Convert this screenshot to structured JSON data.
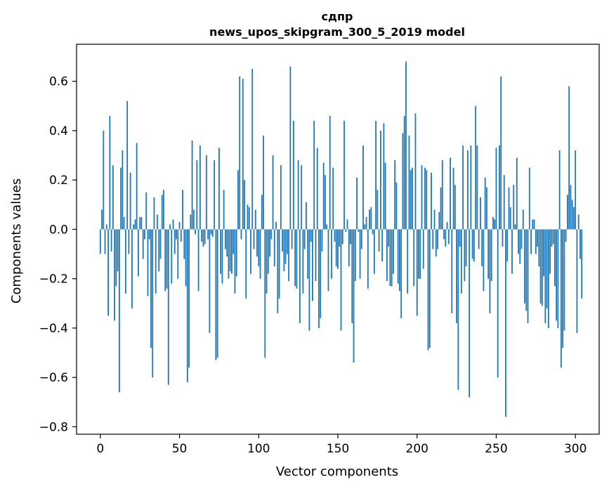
{
  "chart_data": {
    "type": "bar",
    "title_line1": "сдпр",
    "title_line2": "news_upos_skipgram_300_5_2019 model",
    "xlabel": "Vector components",
    "ylabel": "Components values",
    "xlim": [
      -15,
      315
    ],
    "ylim": [
      -0.83,
      0.75
    ],
    "x_ticks": [
      0,
      50,
      100,
      150,
      200,
      250,
      300
    ],
    "x_tick_labels": [
      "0",
      "50",
      "100",
      "150",
      "200",
      "250",
      "300"
    ],
    "y_ticks": [
      -0.8,
      -0.6,
      -0.4,
      -0.2,
      0.0,
      0.2,
      0.4,
      0.6
    ],
    "y_tick_labels": [
      "−0.8",
      "−0.6",
      "−0.4",
      "−0.2",
      "0.0",
      "0.2",
      "0.4",
      "0.6"
    ],
    "bar_color": "#1f77b4",
    "grid": false,
    "values": [
      -0.1,
      0.08,
      0.4,
      -0.1,
      0.02,
      -0.35,
      0.46,
      -0.09,
      0.26,
      -0.37,
      -0.23,
      -0.17,
      -0.66,
      0.25,
      0.32,
      0.05,
      -0.26,
      0.52,
      -0.1,
      0.23,
      -0.32,
      0.02,
      0.04,
      0.35,
      -0.19,
      0.05,
      0.05,
      -0.12,
      -0.04,
      0.15,
      -0.27,
      -0.04,
      -0.48,
      -0.6,
      0.13,
      -0.26,
      0.06,
      -0.17,
      -0.12,
      0.14,
      0.16,
      -0.25,
      -0.24,
      -0.63,
      0.02,
      -0.22,
      0.04,
      -0.1,
      -0.04,
      -0.2,
      0.03,
      -0.05,
      0.16,
      -0.12,
      -0.23,
      -0.62,
      -0.56,
      0.06,
      0.36,
      0.08,
      -0.02,
      0.28,
      -0.25,
      0.34,
      -0.05,
      -0.07,
      -0.06,
      0.3,
      -0.04,
      -0.42,
      -0.02,
      -0.03,
      0.28,
      -0.53,
      -0.52,
      0.33,
      -0.18,
      -0.22,
      0.16,
      -0.08,
      -0.11,
      -0.2,
      -0.17,
      -0.18,
      -0.1,
      -0.26,
      -0.19,
      0.24,
      0.62,
      -0.04,
      0.61,
      0.2,
      -0.28,
      0.1,
      0.09,
      -0.18,
      0.65,
      -0.08,
      0.08,
      -0.11,
      -0.15,
      -0.2,
      0.14,
      0.38,
      -0.52,
      -0.26,
      -0.18,
      -0.11,
      -0.04,
      0.3,
      -0.15,
      0.03,
      -0.34,
      -0.28,
      0.26,
      -0.09,
      -0.17,
      -0.14,
      -0.1,
      -0.21,
      0.66,
      -0.08,
      0.44,
      -0.23,
      -0.24,
      0.28,
      -0.38,
      0.26,
      -0.26,
      -0.08,
      0.11,
      -0.2,
      -0.41,
      -0.05,
      -0.29,
      0.44,
      -0.21,
      0.33,
      -0.4,
      -0.36,
      -0.09,
      0.27,
      0.22,
      0.02,
      -0.25,
      0.46,
      -0.2,
      0.25,
      -0.05,
      -0.15,
      -0.16,
      -0.07,
      -0.41,
      -0.06,
      0.44,
      -0.01,
      0.04,
      -0.15,
      -0.06,
      -0.38,
      -0.54,
      -0.21,
      0.21,
      -0.01,
      -0.2,
      -0.08,
      0.34,
      0.02,
      0.05,
      -0.24,
      0.08,
      0.09,
      -0.02,
      -0.18,
      0.44,
      0.16,
      -0.09,
      0.4,
      -0.13,
      0.43,
      0.27,
      -0.21,
      -0.07,
      -0.23,
      -0.23,
      -0.18,
      0.28,
      0.19,
      -0.22,
      -0.25,
      -0.36,
      0.39,
      0.46,
      0.68,
      -0.26,
      0.38,
      0.24,
      0.25,
      -0.23,
      0.47,
      -0.35,
      -0.2,
      -0.2,
      0.26,
      -0.16,
      0.25,
      0.24,
      -0.49,
      -0.48,
      0.23,
      -0.08,
      0.08,
      -0.11,
      -0.08,
      0.07,
      0.17,
      0.28,
      -0.04,
      -0.07,
      0.03,
      -0.06,
      0.29,
      -0.34,
      0.25,
      0.18,
      -0.38,
      -0.65,
      -0.07,
      -0.26,
      0.34,
      -0.21,
      -0.15,
      0.32,
      -0.68,
      0.34,
      -0.12,
      -0.13,
      0.5,
      0.34,
      -0.08,
      0.13,
      -0.15,
      -0.25,
      0.21,
      0.17,
      -0.2,
      -0.34,
      -0.21,
      0.05,
      0.04,
      0.33,
      -0.6,
      0.34,
      0.62,
      -0.07,
      0.22,
      -0.76,
      -0.13,
      0.17,
      0.09,
      -0.18,
      0.18,
      0.02,
      0.29,
      -0.1,
      -0.14,
      -0.08,
      0.08,
      -0.3,
      -0.33,
      -0.38,
      0.25,
      -0.1,
      0.04,
      0.04,
      -0.1,
      -0.07,
      -0.15,
      -0.3,
      -0.31,
      -0.19,
      -0.38,
      -0.32,
      -0.4,
      -0.18,
      -0.07,
      -0.06,
      -0.23,
      -0.37,
      -0.4,
      0.32,
      -0.56,
      -0.48,
      -0.41,
      -0.05,
      0.14,
      0.58,
      0.18,
      0.12,
      0.09,
      0.32,
      -0.42,
      0.06,
      -0.12,
      -0.28
    ]
  }
}
